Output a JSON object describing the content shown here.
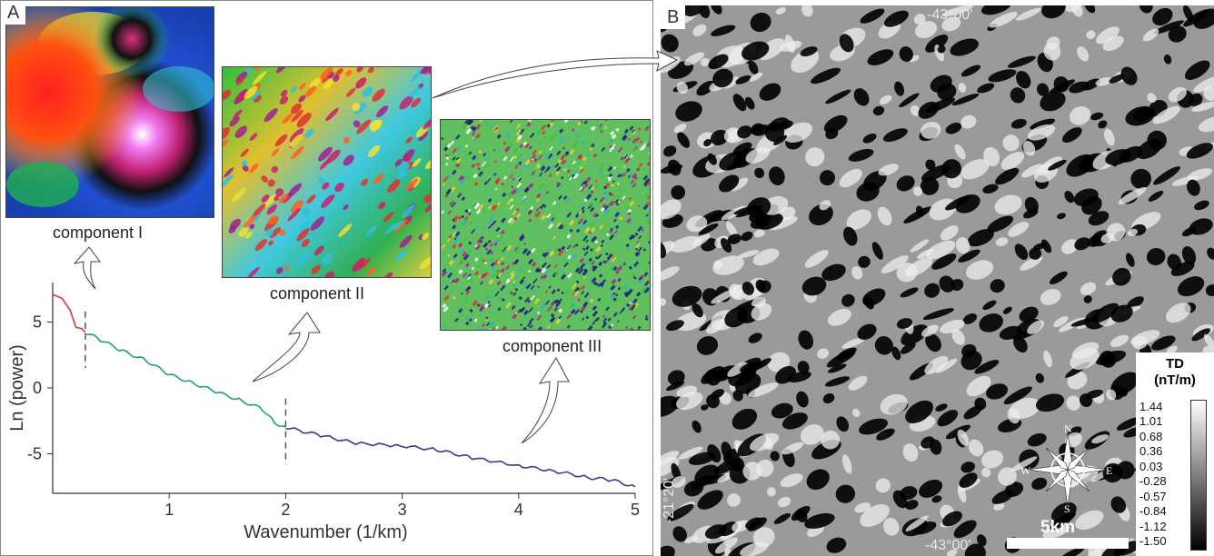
{
  "panel_a": {
    "label": "A",
    "components": [
      {
        "label": "component I"
      },
      {
        "label": "component II"
      },
      {
        "label": "component III"
      }
    ]
  },
  "panel_b": {
    "label": "B",
    "coords": {
      "top": "-43°00'",
      "bottom": "-43°00'",
      "left": "-21°20'"
    },
    "legend": {
      "title": "TD",
      "unit": "(nT/m)",
      "values": [
        "1.44",
        "1.01",
        "0.68",
        "0.36",
        "0.03",
        "-0.28",
        "-0.57",
        "-0.84",
        "-1.12",
        "-1.50"
      ]
    },
    "scale_bar": "5km",
    "compass": {
      "n": "N",
      "e": "E",
      "s": "S",
      "w": "W"
    }
  },
  "chart_data": {
    "type": "line",
    "xlabel": "Wavenumber (1/km)",
    "ylabel": "Ln (power)",
    "xlim": [
      0,
      5
    ],
    "ylim": [
      -8,
      8
    ],
    "xticks": [
      "1",
      "2",
      "3",
      "4",
      "5"
    ],
    "yticks": [
      "5",
      "0",
      "-5"
    ],
    "breaks": [
      0.28,
      2.0
    ],
    "series": [
      {
        "color": "#e8303a",
        "x": [
          0.0,
          0.08,
          0.15,
          0.2,
          0.25,
          0.28
        ],
        "y": [
          7.1,
          6.8,
          5.9,
          4.6,
          4.5,
          4.2
        ]
      },
      {
        "color": "#1fa36a",
        "x": [
          0.28,
          0.4,
          0.6,
          0.8,
          1.0,
          1.2,
          1.4,
          1.6,
          1.8,
          1.9,
          2.0
        ],
        "y": [
          4.2,
          3.7,
          2.8,
          2.1,
          1.0,
          0.4,
          -0.3,
          -0.9,
          -1.6,
          -2.6,
          -3.0
        ]
      },
      {
        "color": "#3a3a8c",
        "x": [
          2.0,
          2.3,
          2.6,
          3.0,
          3.3,
          3.6,
          4.0,
          4.3,
          4.6,
          4.8,
          5.0
        ],
        "y": [
          -3.0,
          -3.6,
          -4.2,
          -4.4,
          -4.7,
          -5.3,
          -5.9,
          -6.3,
          -6.8,
          -7.0,
          -7.5
        ]
      }
    ]
  }
}
